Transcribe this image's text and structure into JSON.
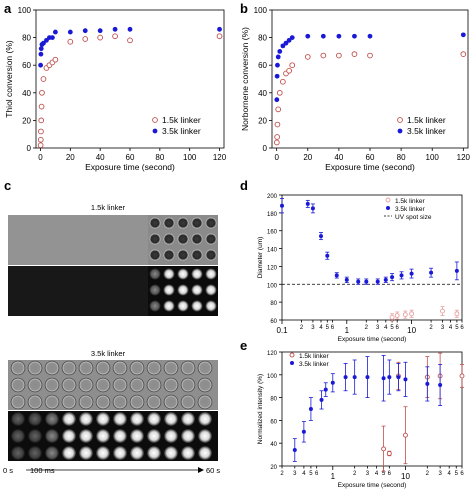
{
  "colors": {
    "blue": "#1a1ad6",
    "red": "#c0504d",
    "pink": "#e8a0a0"
  },
  "panel_labels": [
    "a",
    "b",
    "c",
    "d",
    "e"
  ],
  "chart_data": [
    {
      "id": "a",
      "type": "scatter",
      "xlabel": "Exposure time (second)",
      "ylabel": "Thiol conversion (%)",
      "xlim": [
        -3,
        123
      ],
      "ylim": [
        0,
        100
      ],
      "xticks": [
        0,
        20,
        40,
        60,
        80,
        100,
        120
      ],
      "yticks": [
        0,
        20,
        40,
        60,
        80,
        100
      ],
      "legend": "bottom-right",
      "series": [
        {
          "name": "1.5k linker",
          "marker": "open-circle",
          "color": "red",
          "x": [
            0.1,
            0.2,
            0.3,
            0.5,
            0.75,
            1,
            2,
            4,
            6,
            8,
            10,
            20,
            30,
            40,
            50,
            60,
            120
          ],
          "y": [
            2,
            6,
            12,
            20,
            30,
            40,
            50,
            58,
            60,
            62,
            64,
            77,
            79,
            80,
            81,
            78,
            81
          ]
        },
        {
          "name": "3.5k linker",
          "marker": "filled-circle",
          "color": "blue",
          "x": [
            0.1,
            0.3,
            0.5,
            1,
            2,
            4,
            6,
            8,
            10,
            20,
            30,
            40,
            50,
            60,
            120
          ],
          "y": [
            60,
            68,
            72,
            75,
            76,
            78,
            80,
            80,
            84,
            84,
            85,
            85,
            86,
            86,
            86
          ]
        }
      ]
    },
    {
      "id": "b",
      "type": "scatter",
      "xlabel": "Exposure time (second)",
      "ylabel": "Norbornene conversion (%)",
      "xlim": [
        -3,
        123
      ],
      "ylim": [
        0,
        100
      ],
      "xticks": [
        0,
        20,
        40,
        60,
        80,
        100,
        120
      ],
      "yticks": [
        0,
        20,
        40,
        60,
        80,
        100
      ],
      "legend": "bottom-right",
      "series": [
        {
          "name": "1.5k linker",
          "marker": "open-circle",
          "color": "red",
          "x": [
            0.1,
            0.3,
            0.5,
            1,
            2,
            4,
            6,
            8,
            10,
            20,
            30,
            40,
            50,
            60,
            120
          ],
          "y": [
            4,
            8,
            17,
            28,
            40,
            48,
            54,
            56,
            60,
            66,
            67,
            67,
            68,
            67,
            68
          ]
        },
        {
          "name": "3.5k linker",
          "marker": "filled-circle",
          "color": "blue",
          "x": [
            0.1,
            0.3,
            0.5,
            1,
            2,
            4,
            6,
            8,
            10,
            20,
            30,
            40,
            50,
            60,
            120
          ],
          "y": [
            35,
            52,
            60,
            66,
            70,
            74,
            76,
            78,
            80,
            81,
            81,
            81,
            81,
            81,
            82
          ]
        }
      ]
    },
    {
      "id": "d",
      "type": "scatter",
      "xlabel": "Exposure time (second)",
      "ylabel": "Diameter (um)",
      "xscale": "log",
      "xlim": [
        0.1,
        60
      ],
      "ylim": [
        60,
        200
      ],
      "yticks": [
        60,
        80,
        100,
        120,
        140,
        160,
        180,
        200
      ],
      "xticks_major": [
        0.1,
        1,
        10
      ],
      "xticks_major_labels": [
        "0.1",
        "1",
        "10"
      ],
      "xticks_minor": [
        0.2,
        0.3,
        0.4,
        0.5,
        0.6,
        2,
        3,
        4,
        5,
        6,
        20,
        30,
        40,
        50,
        60
      ],
      "xticks_minor_labels": [
        "2",
        "3",
        "4",
        "5",
        "6",
        "2",
        "3",
        "4",
        "5",
        "6",
        "2",
        "3",
        "4",
        "5",
        "6"
      ],
      "legend": "top-right",
      "reference_line": {
        "name": "UV spot size",
        "y": 100
      },
      "series": [
        {
          "name": "1.5k linker",
          "marker": "open-circle",
          "color": "pink",
          "x": [
            5,
            6,
            8,
            10,
            30,
            50
          ],
          "y": [
            63,
            65,
            66,
            67,
            70,
            67
          ],
          "err": [
            4,
            4,
            4,
            4,
            5,
            4
          ]
        },
        {
          "name": "3.5k linker",
          "marker": "filled-circle",
          "color": "blue",
          "x": [
            0.1,
            0.25,
            0.3,
            0.4,
            0.5,
            0.7,
            1,
            1.5,
            2,
            3,
            4,
            5,
            7,
            10,
            20,
            50
          ],
          "y": [
            188,
            190,
            185,
            154,
            132,
            110,
            105,
            103,
            103,
            103,
            105,
            108,
            110,
            112,
            113,
            115
          ],
          "err": [
            8,
            4,
            5,
            4,
            4,
            3,
            3,
            3,
            3,
            3,
            3,
            4,
            4,
            5,
            5,
            10
          ]
        }
      ]
    },
    {
      "id": "e",
      "type": "scatter",
      "xlabel": "Exposure time (second)",
      "ylabel": "Normalized intensity (%)",
      "xscale": "log",
      "xlim": [
        0.2,
        60
      ],
      "ylim": [
        20,
        120
      ],
      "yticks": [
        20,
        40,
        60,
        80,
        100,
        120
      ],
      "xticks_major": [
        1,
        10
      ],
      "xticks_major_labels": [
        "1",
        "10"
      ],
      "xticks_minor": [
        0.2,
        0.3,
        0.4,
        0.5,
        0.6,
        2,
        3,
        4,
        5,
        6,
        20,
        30,
        40,
        50,
        60
      ],
      "xticks_minor_labels": [
        "2",
        "3",
        "4",
        "5",
        "6",
        "2",
        "3",
        "4",
        "5",
        "6",
        "2",
        "3",
        "4",
        "5",
        "6"
      ],
      "legend": "top-left",
      "series": [
        {
          "name": "1.5k linker",
          "marker": "open-circle",
          "color": "red",
          "x": [
            5,
            6,
            8,
            10,
            20,
            30,
            60
          ],
          "y": [
            35,
            31,
            99,
            47,
            98,
            99,
            99
          ],
          "err": [
            20,
            2,
            12,
            25,
            18,
            20,
            10
          ]
        },
        {
          "name": "3.5k linker",
          "marker": "filled-circle",
          "color": "blue",
          "x": [
            0.3,
            0.4,
            0.5,
            0.7,
            0.8,
            1,
            1.5,
            2,
            3,
            5,
            6,
            8,
            10,
            20,
            30
          ],
          "y": [
            34,
            50,
            70,
            78,
            87,
            93,
            98,
            98,
            98,
            97,
            98,
            98,
            96,
            92,
            91
          ],
          "err": [
            10,
            9,
            10,
            8,
            6,
            8,
            12,
            15,
            18,
            20,
            15,
            12,
            15,
            15,
            18
          ]
        }
      ]
    }
  ],
  "micrograph": {
    "top_title": "1.5k linker",
    "bottom_title": "3.5k linker",
    "time_start": "0 s",
    "time_mid": "100 ms",
    "time_end": "60 s"
  }
}
